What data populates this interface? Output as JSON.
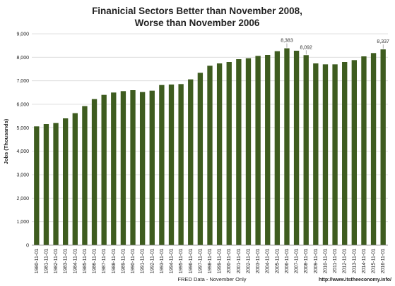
{
  "chart_data": {
    "type": "bar",
    "title_line1": "Finanicial Sectors Better than November 2008,",
    "title_line2": "Worse than November 2006",
    "ylabel": "Jobs (Thousands)",
    "xlabel": "FRED Data - November Only",
    "credit": "http://www.itstheeconomy.info/",
    "ylim": [
      0,
      9000
    ],
    "yticks": [
      0,
      1000,
      2000,
      3000,
      4000,
      5000,
      6000,
      7000,
      8000,
      9000
    ],
    "ytick_labels": [
      "0",
      "1,000",
      "2,000",
      "3,000",
      "4,000",
      "5,000",
      "6,000",
      "7,000",
      "8,000",
      "9,000"
    ],
    "grid": true,
    "bar_color": "#3e5c1f",
    "categories": [
      "1980-11-01",
      "1981-11-01",
      "1982-11-01",
      "1983-11-01",
      "1984-11-01",
      "1985-11-01",
      "1986-11-01",
      "1987-11-01",
      "1988-11-01",
      "1989-11-01",
      "1990-11-01",
      "1991-11-01",
      "1992-11-01",
      "1993-11-01",
      "1994-11-01",
      "1995-11-01",
      "1996-11-01",
      "1997-11-01",
      "1998-11-01",
      "1999-11-01",
      "2000-11-01",
      "2001-11-01",
      "2002-11-01",
      "2003-11-01",
      "2004-11-01",
      "2005-11-01",
      "2006-11-01",
      "2007-11-01",
      "2008-11-01",
      "2009-11-01",
      "2010-11-01",
      "2011-11-01",
      "2012-11-01",
      "2013-11-01",
      "2014-11-01",
      "2015-11-01",
      "2016-11-01"
    ],
    "values": [
      5060,
      5160,
      5200,
      5400,
      5620,
      5920,
      6220,
      6400,
      6500,
      6560,
      6600,
      6520,
      6580,
      6820,
      6840,
      6860,
      7060,
      7340,
      7640,
      7740,
      7800,
      7920,
      7960,
      8060,
      8100,
      8260,
      8383,
      8280,
      8092,
      7740,
      7700,
      7700,
      7800,
      7880,
      8040,
      8180,
      8337
    ],
    "annotations": [
      {
        "category": "2006-11-01",
        "label": "8,383"
      },
      {
        "category": "2008-11-01",
        "label": "8,092"
      },
      {
        "category": "2016-11-01",
        "label": "8,337"
      }
    ]
  }
}
